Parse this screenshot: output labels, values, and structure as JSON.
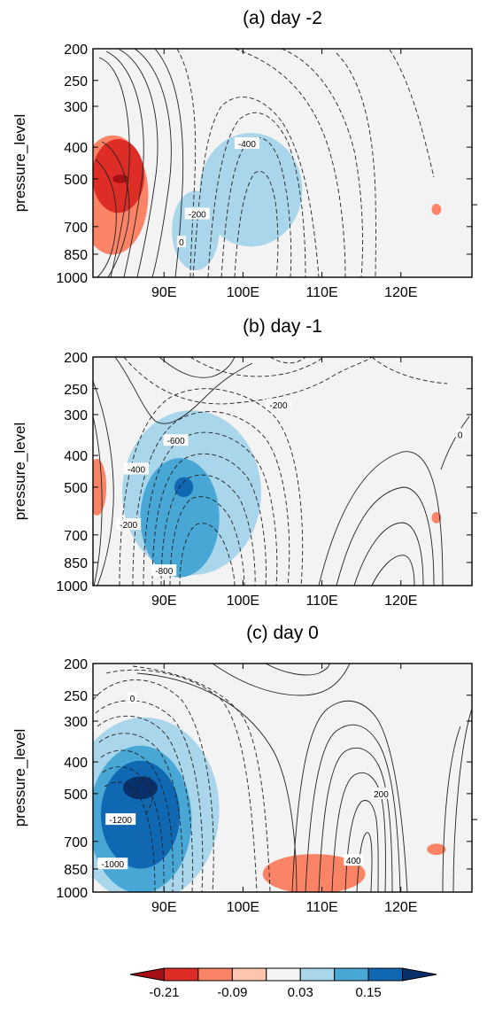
{
  "chart_data": {
    "type": "heatmap",
    "description_units": "pressure (hPa) vs longitude",
    "ylabel": "pressure_level",
    "y_ticks": [
      "200",
      "250",
      "300",
      "400",
      "500",
      "700",
      "850",
      "1000"
    ],
    "y_tick_values": [
      200,
      250,
      300,
      400,
      500,
      700,
      850,
      1000
    ],
    "x_ticks": [
      "90E",
      "100E",
      "110E",
      "120E"
    ],
    "x_tick_values": [
      90,
      100,
      110,
      120
    ],
    "xlim": [
      81,
      129
    ],
    "ylim": [
      1000,
      200
    ],
    "colorbar": {
      "labels": [
        "-0.21",
        "-0.09",
        "0.03",
        "0.15"
      ],
      "levels": [
        -0.21,
        -0.15,
        -0.09,
        -0.03,
        0.03,
        0.09,
        0.15,
        0.21
      ],
      "colors": [
        "#a50f15",
        "#de2d26",
        "#fb8467",
        "#fcc5ac",
        "#f3f3f3",
        "#a9d6ea",
        "#48a7d5",
        "#1067b2",
        "#08306b"
      ]
    },
    "panels": [
      {
        "title": "(a) day -2",
        "contour_labels": [
          {
            "text": "-400",
            "lon": 100.5,
            "p": 390
          },
          {
            "text": "-200",
            "lon": 94.2,
            "p": 640
          },
          {
            "text": "0",
            "lon": 92.2,
            "p": 780
          }
        ],
        "blobs": [
          {
            "lon": 83.5,
            "p": 560,
            "rx": 4.5,
            "ry": 0.42,
            "level": -0.09
          },
          {
            "lon": 84.2,
            "p": 490,
            "rx": 3.3,
            "ry": 0.26,
            "level": -0.15
          },
          {
            "lon": 84.5,
            "p": 500,
            "rx": 1.0,
            "ry": 0.03,
            "level": -0.21
          },
          {
            "lon": 101.0,
            "p": 540,
            "rx": 6.5,
            "ry": 0.4,
            "level": 0.09
          },
          {
            "lon": 94.0,
            "p": 720,
            "rx": 3.0,
            "ry": 0.28,
            "level": 0.09
          },
          {
            "lon": 124.5,
            "p": 620,
            "rx": 0.6,
            "ry": 0.04,
            "level": -0.09
          }
        ]
      },
      {
        "title": "(b) day -1",
        "contour_labels": [
          {
            "text": "-200",
            "lon": 104.5,
            "p": 280
          },
          {
            "text": "0",
            "lon": 127.5,
            "p": 345
          },
          {
            "text": "-600",
            "lon": 91.5,
            "p": 360
          },
          {
            "text": "-400",
            "lon": 86.5,
            "p": 440
          },
          {
            "text": "-200",
            "lon": 85.5,
            "p": 650
          },
          {
            "text": "-800",
            "lon": 90.0,
            "p": 900
          }
        ],
        "blobs": [
          {
            "lon": 93.5,
            "p": 520,
            "rx": 8.8,
            "ry": 0.58,
            "level": 0.09
          },
          {
            "lon": 92.0,
            "p": 620,
            "rx": 5.0,
            "ry": 0.42,
            "level": 0.15
          },
          {
            "lon": 92.5,
            "p": 500,
            "rx": 1.2,
            "ry": 0.07,
            "level": 0.21
          },
          {
            "lon": 81.5,
            "p": 500,
            "rx": 1.2,
            "ry": 0.2,
            "level": -0.09
          },
          {
            "lon": 124.5,
            "p": 620,
            "rx": 0.6,
            "ry": 0.04,
            "level": -0.09
          }
        ]
      },
      {
        "title": "(c) day 0",
        "contour_labels": [
          {
            "text": "0",
            "lon": 86.0,
            "p": 255
          },
          {
            "text": "200",
            "lon": 117.5,
            "p": 500
          },
          {
            "text": "400",
            "lon": 114.0,
            "p": 800
          },
          {
            "text": "-1200",
            "lon": 84.5,
            "p": 600
          },
          {
            "text": "-1000",
            "lon": 83.5,
            "p": 820
          }
        ],
        "blobs": [
          {
            "lon": 87.5,
            "p": 560,
            "rx": 9.5,
            "ry": 0.65,
            "level": 0.09
          },
          {
            "lon": 87.0,
            "p": 600,
            "rx": 6.5,
            "ry": 0.52,
            "level": 0.15
          },
          {
            "lon": 87.0,
            "p": 580,
            "rx": 5.0,
            "ry": 0.38,
            "level": 0.21
          },
          {
            "lon": 87.0,
            "p": 480,
            "rx": 2.2,
            "ry": 0.08,
            "level": 0.27
          },
          {
            "lon": 109.0,
            "p": 880,
            "rx": 6.5,
            "ry": 0.14,
            "level": -0.09
          },
          {
            "lon": 124.5,
            "p": 740,
            "rx": 1.2,
            "ry": 0.04,
            "level": -0.09
          }
        ]
      }
    ]
  }
}
